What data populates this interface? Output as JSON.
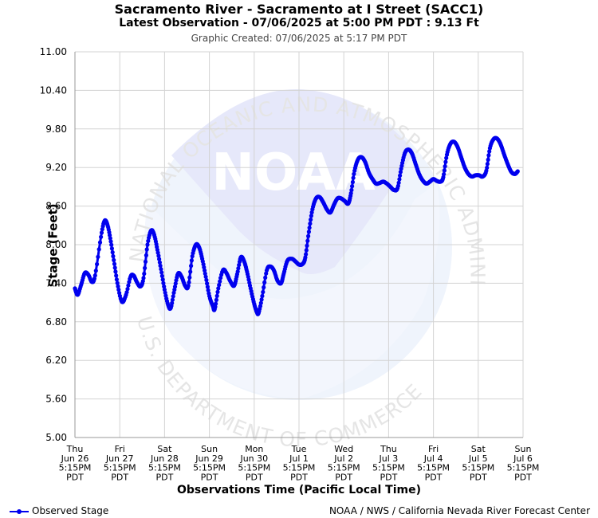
{
  "header": {
    "title": "Sacramento River - Sacramento at I Street (SACC1)",
    "subtitle": "Latest Observation - 07/06/2025 at 5:00 PM PDT : 9.13 Ft",
    "created": "Graphic Created: 07/06/2025 at 5:17 PM PDT"
  },
  "footer": {
    "legend_label": "Observed Stage",
    "credit": "NOAA / NWS / California Nevada River Forecast Center"
  },
  "watermark": {
    "logo_text": "NOAA",
    "ring_text_top": "NATIONAL OCEANIC AND ATMOSPHERIC ADMINISTRATION",
    "ring_text_bottom": "U.S. DEPARTMENT OF COMMERCE"
  },
  "colors": {
    "series": "#0000ee",
    "grid": "#d3d3d3",
    "watermark": "#e6ecfb"
  },
  "chart_data": {
    "type": "line",
    "title": "Sacramento River - Sacramento at I Street (SACC1)",
    "xlabel": "Observations Time (Pacific Local Time)",
    "ylabel": "Stage (Feet)",
    "ylim": [
      5.0,
      11.0
    ],
    "yticks": [
      "11.00",
      "10.40",
      "9.80",
      "9.20",
      "8.60",
      "8.00",
      "7.40",
      "6.80",
      "6.20",
      "5.60",
      "5.00"
    ],
    "x_unit": "days since Thu Jun 26 5:15PM PDT",
    "xlim": [
      0,
      10
    ],
    "xticks": [
      {
        "day": "Thu",
        "date": "Jun 26",
        "time": "5:15PM",
        "tz": "PDT"
      },
      {
        "day": "Fri",
        "date": "Jun 27",
        "time": "5:15PM",
        "tz": "PDT"
      },
      {
        "day": "Sat",
        "date": "Jun 28",
        "time": "5:15PM",
        "tz": "PDT"
      },
      {
        "day": "Sun",
        "date": "Jun 29",
        "time": "5:15PM",
        "tz": "PDT"
      },
      {
        "day": "Mon",
        "date": "Jun 30",
        "time": "5:15PM",
        "tz": "PDT"
      },
      {
        "day": "Tue",
        "date": "Jul 1",
        "time": "5:15PM",
        "tz": "PDT"
      },
      {
        "day": "Wed",
        "date": "Jul 2",
        "time": "5:15PM",
        "tz": "PDT"
      },
      {
        "day": "Thu",
        "date": "Jul 3",
        "time": "5:15PM",
        "tz": "PDT"
      },
      {
        "day": "Fri",
        "date": "Jul 4",
        "time": "5:15PM",
        "tz": "PDT"
      },
      {
        "day": "Sat",
        "date": "Jul 5",
        "time": "5:15PM",
        "tz": "PDT"
      },
      {
        "day": "Sun",
        "date": "Jul 6",
        "time": "5:15PM",
        "tz": "PDT"
      }
    ],
    "grid": true,
    "legend": "bottom-left",
    "series": [
      {
        "name": "Observed Stage",
        "points": [
          [
            0.0,
            7.32
          ],
          [
            0.06,
            7.22
          ],
          [
            0.14,
            7.38
          ],
          [
            0.22,
            7.56
          ],
          [
            0.3,
            7.53
          ],
          [
            0.38,
            7.42
          ],
          [
            0.45,
            7.52
          ],
          [
            0.58,
            8.12
          ],
          [
            0.66,
            8.37
          ],
          [
            0.73,
            8.3
          ],
          [
            0.8,
            8.05
          ],
          [
            0.88,
            7.7
          ],
          [
            0.96,
            7.35
          ],
          [
            1.05,
            7.11
          ],
          [
            1.14,
            7.22
          ],
          [
            1.24,
            7.5
          ],
          [
            1.31,
            7.52
          ],
          [
            1.38,
            7.42
          ],
          [
            1.46,
            7.35
          ],
          [
            1.53,
            7.48
          ],
          [
            1.62,
            8.0
          ],
          [
            1.7,
            8.22
          ],
          [
            1.77,
            8.15
          ],
          [
            1.84,
            7.92
          ],
          [
            1.92,
            7.62
          ],
          [
            2.0,
            7.3
          ],
          [
            2.08,
            7.06
          ],
          [
            2.14,
            7.02
          ],
          [
            2.22,
            7.3
          ],
          [
            2.3,
            7.55
          ],
          [
            2.38,
            7.5
          ],
          [
            2.46,
            7.36
          ],
          [
            2.53,
            7.36
          ],
          [
            2.62,
            7.82
          ],
          [
            2.7,
            8.0
          ],
          [
            2.77,
            7.96
          ],
          [
            2.84,
            7.78
          ],
          [
            2.92,
            7.5
          ],
          [
            3.0,
            7.2
          ],
          [
            3.08,
            7.04
          ],
          [
            3.12,
            7.0
          ],
          [
            3.2,
            7.32
          ],
          [
            3.3,
            7.6
          ],
          [
            3.38,
            7.56
          ],
          [
            3.46,
            7.44
          ],
          [
            3.55,
            7.36
          ],
          [
            3.62,
            7.54
          ],
          [
            3.7,
            7.8
          ],
          [
            3.77,
            7.75
          ],
          [
            3.84,
            7.58
          ],
          [
            3.92,
            7.32
          ],
          [
            4.0,
            7.08
          ],
          [
            4.06,
            6.95
          ],
          [
            4.1,
            6.94
          ],
          [
            4.18,
            7.2
          ],
          [
            4.28,
            7.6
          ],
          [
            4.36,
            7.66
          ],
          [
            4.44,
            7.6
          ],
          [
            4.52,
            7.44
          ],
          [
            4.6,
            7.4
          ],
          [
            4.66,
            7.55
          ],
          [
            4.74,
            7.75
          ],
          [
            4.84,
            7.78
          ],
          [
            4.92,
            7.74
          ],
          [
            5.0,
            7.69
          ],
          [
            5.08,
            7.7
          ],
          [
            5.14,
            7.8
          ],
          [
            5.22,
            8.2
          ],
          [
            5.3,
            8.55
          ],
          [
            5.38,
            8.72
          ],
          [
            5.46,
            8.74
          ],
          [
            5.54,
            8.66
          ],
          [
            5.62,
            8.55
          ],
          [
            5.7,
            8.5
          ],
          [
            5.78,
            8.62
          ],
          [
            5.86,
            8.72
          ],
          [
            5.94,
            8.72
          ],
          [
            6.02,
            8.68
          ],
          [
            6.1,
            8.64
          ],
          [
            6.16,
            8.8
          ],
          [
            6.24,
            9.15
          ],
          [
            6.32,
            9.33
          ],
          [
            6.4,
            9.36
          ],
          [
            6.48,
            9.28
          ],
          [
            6.56,
            9.12
          ],
          [
            6.64,
            9.02
          ],
          [
            6.72,
            8.95
          ],
          [
            6.8,
            8.96
          ],
          [
            6.88,
            8.98
          ],
          [
            6.96,
            8.95
          ],
          [
            7.04,
            8.9
          ],
          [
            7.12,
            8.85
          ],
          [
            7.2,
            8.88
          ],
          [
            7.28,
            9.18
          ],
          [
            7.36,
            9.42
          ],
          [
            7.44,
            9.48
          ],
          [
            7.52,
            9.42
          ],
          [
            7.6,
            9.26
          ],
          [
            7.68,
            9.1
          ],
          [
            7.76,
            9.0
          ],
          [
            7.84,
            8.95
          ],
          [
            7.92,
            8.98
          ],
          [
            8.0,
            9.02
          ],
          [
            8.08,
            8.99
          ],
          [
            8.16,
            8.98
          ],
          [
            8.22,
            9.05
          ],
          [
            8.3,
            9.4
          ],
          [
            8.38,
            9.57
          ],
          [
            8.46,
            9.6
          ],
          [
            8.54,
            9.52
          ],
          [
            8.62,
            9.36
          ],
          [
            8.7,
            9.2
          ],
          [
            8.78,
            9.1
          ],
          [
            8.86,
            9.06
          ],
          [
            8.94,
            9.08
          ],
          [
            9.02,
            9.08
          ],
          [
            9.1,
            9.06
          ],
          [
            9.18,
            9.15
          ],
          [
            9.26,
            9.5
          ],
          [
            9.34,
            9.64
          ],
          [
            9.42,
            9.65
          ],
          [
            9.5,
            9.56
          ],
          [
            9.58,
            9.4
          ],
          [
            9.66,
            9.25
          ],
          [
            9.74,
            9.13
          ],
          [
            9.82,
            9.1
          ],
          [
            9.88,
            9.14
          ]
        ]
      }
    ]
  }
}
